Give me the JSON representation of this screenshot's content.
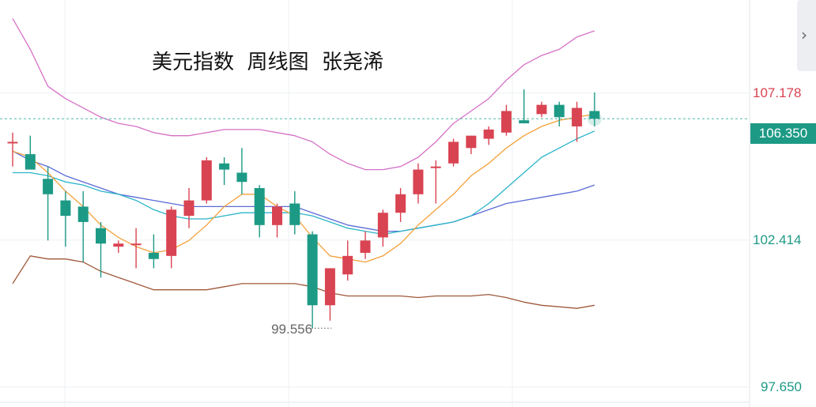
{
  "title": "美元指数  周线图  张尧浠",
  "current_price": "106.350",
  "side_panel_toggle": "›",
  "colors": {
    "up": "#d94452",
    "down": "#1d9a85",
    "ma_fast": "#f4a13c",
    "ma_mid": "#2bb5c9",
    "ma_slow": "#5b6bd6",
    "band_upper": "#d670c6",
    "band_lower": "#a0583a",
    "grid": "#eef0f3",
    "current_line": "#4fb7a6"
  },
  "chart_data": {
    "type": "candlestick",
    "y_axis_labels": [
      {
        "value": 107.178,
        "text": "107.178",
        "color": "#d94452"
      },
      {
        "value": 102.414,
        "text": "102.414",
        "color": "#1d9a85"
      },
      {
        "value": 97.65,
        "text": "97.650",
        "color": "#1d9a85"
      }
    ],
    "ylim": [
      97.0,
      110.2
    ],
    "current_price": 106.35,
    "low_marker": {
      "value": 99.556,
      "text": "99.556",
      "index": 17
    },
    "candles": [
      {
        "o": 105.6,
        "h": 105.9,
        "l": 104.8,
        "c": 105.6
      },
      {
        "o": 105.2,
        "h": 105.8,
        "l": 104.8,
        "c": 104.7
      },
      {
        "o": 104.4,
        "h": 104.8,
        "l": 102.4,
        "c": 103.9
      },
      {
        "o": 103.7,
        "h": 104.0,
        "l": 102.2,
        "c": 103.2
      },
      {
        "o": 103.5,
        "h": 104.0,
        "l": 101.7,
        "c": 103.0
      },
      {
        "o": 102.8,
        "h": 103.0,
        "l": 101.2,
        "c": 102.3
      },
      {
        "o": 102.2,
        "h": 102.4,
        "l": 102.0,
        "c": 102.3
      },
      {
        "o": 102.3,
        "h": 102.8,
        "l": 101.5,
        "c": 102.3
      },
      {
        "o": 102.0,
        "h": 102.6,
        "l": 101.5,
        "c": 101.8
      },
      {
        "o": 101.9,
        "h": 103.5,
        "l": 101.5,
        "c": 103.4
      },
      {
        "o": 103.2,
        "h": 104.1,
        "l": 102.8,
        "c": 103.7
      },
      {
        "o": 103.7,
        "h": 105.1,
        "l": 103.6,
        "c": 105.0
      },
      {
        "o": 104.9,
        "h": 105.1,
        "l": 104.2,
        "c": 104.7
      },
      {
        "o": 104.6,
        "h": 105.4,
        "l": 103.9,
        "c": 104.3
      },
      {
        "o": 104.1,
        "h": 104.2,
        "l": 102.5,
        "c": 102.9
      },
      {
        "o": 102.9,
        "h": 103.6,
        "l": 102.5,
        "c": 103.5
      },
      {
        "o": 103.6,
        "h": 104.0,
        "l": 102.6,
        "c": 102.9
      },
      {
        "o": 102.6,
        "h": 102.7,
        "l": 99.556,
        "c": 100.3
      },
      {
        "o": 100.3,
        "h": 101.5,
        "l": 99.8,
        "c": 101.5
      },
      {
        "o": 101.3,
        "h": 102.4,
        "l": 101.1,
        "c": 101.9
      },
      {
        "o": 102.0,
        "h": 102.7,
        "l": 101.8,
        "c": 102.4
      },
      {
        "o": 102.5,
        "h": 103.4,
        "l": 102.2,
        "c": 103.3
      },
      {
        "o": 103.3,
        "h": 104.1,
        "l": 103.0,
        "c": 103.9
      },
      {
        "o": 103.9,
        "h": 104.9,
        "l": 103.6,
        "c": 104.7
      },
      {
        "o": 104.8,
        "h": 105.0,
        "l": 103.6,
        "c": 104.8
      },
      {
        "o": 104.9,
        "h": 105.7,
        "l": 104.8,
        "c": 105.6
      },
      {
        "o": 105.4,
        "h": 105.8,
        "l": 105.2,
        "c": 105.8
      },
      {
        "o": 105.7,
        "h": 106.1,
        "l": 105.5,
        "c": 106.0
      },
      {
        "o": 105.9,
        "h": 106.8,
        "l": 105.8,
        "c": 106.6
      },
      {
        "o": 106.3,
        "h": 107.3,
        "l": 106.2,
        "c": 106.2
      },
      {
        "o": 106.5,
        "h": 106.9,
        "l": 106.4,
        "c": 106.8
      },
      {
        "o": 106.8,
        "h": 106.9,
        "l": 106.1,
        "c": 106.4
      },
      {
        "o": 106.1,
        "h": 106.9,
        "l": 105.6,
        "c": 106.7
      },
      {
        "o": 106.6,
        "h": 107.2,
        "l": 106.1,
        "c": 106.35
      }
    ],
    "ma_fast": [
      105.3,
      105.1,
      104.6,
      104.0,
      103.5,
      102.9,
      102.5,
      102.2,
      102.0,
      102.1,
      102.4,
      102.9,
      103.5,
      103.9,
      103.9,
      103.5,
      103.2,
      102.5,
      101.9,
      101.8,
      101.7,
      101.9,
      102.3,
      102.9,
      103.4,
      103.9,
      104.5,
      104.9,
      105.4,
      105.8,
      106.1,
      106.3,
      106.4,
      106.5
    ],
    "ma_mid": [
      104.6,
      104.6,
      104.5,
      104.3,
      104.2,
      104.0,
      103.9,
      103.7,
      103.4,
      103.2,
      103.1,
      103.1,
      103.2,
      103.3,
      103.3,
      103.3,
      103.3,
      103.2,
      103.0,
      102.8,
      102.7,
      102.6,
      102.7,
      102.8,
      102.9,
      103.0,
      103.2,
      103.6,
      104.1,
      104.6,
      105.1,
      105.4,
      105.7,
      105.95
    ],
    "ma_slow": [
      105.3,
      105.0,
      104.8,
      104.5,
      104.3,
      104.1,
      103.9,
      103.8,
      103.7,
      103.6,
      103.5,
      103.5,
      103.5,
      103.5,
      103.5,
      103.5,
      103.5,
      103.3,
      103.1,
      102.9,
      102.8,
      102.7,
      102.7,
      102.8,
      102.9,
      103.0,
      103.2,
      103.4,
      103.6,
      103.7,
      103.8,
      103.9,
      104.0,
      104.2
    ],
    "band_upper": [
      109.6,
      108.6,
      107.4,
      107.0,
      106.7,
      106.4,
      106.2,
      106.1,
      105.9,
      105.8,
      105.8,
      105.9,
      106.0,
      106.0,
      106.0,
      105.9,
      105.8,
      105.6,
      105.2,
      104.9,
      104.7,
      104.7,
      104.8,
      105.1,
      105.6,
      106.2,
      106.6,
      107.0,
      107.6,
      108.1,
      108.4,
      108.6,
      109.0,
      109.2
    ],
    "band_lower": [
      101.0,
      101.9,
      101.8,
      101.8,
      101.7,
      101.4,
      101.2,
      101.0,
      100.8,
      100.8,
      100.8,
      100.8,
      100.9,
      101.0,
      101.0,
      101.0,
      101.0,
      100.9,
      100.7,
      100.6,
      100.6,
      100.6,
      100.6,
      100.55,
      100.6,
      100.6,
      100.6,
      100.65,
      100.55,
      100.4,
      100.3,
      100.25,
      100.2,
      100.3
    ]
  }
}
